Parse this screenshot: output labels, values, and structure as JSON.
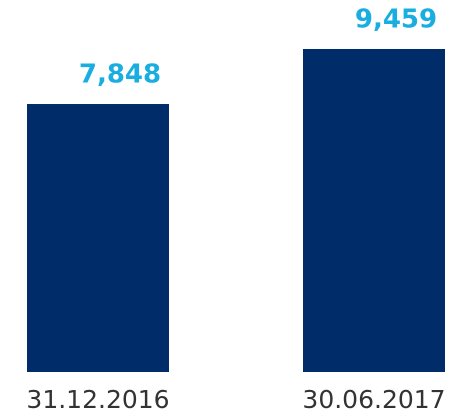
{
  "chart_data": {
    "type": "bar",
    "categories": [
      "31.12.2016",
      "30.06.2017"
    ],
    "values": [
      7848,
      9459
    ],
    "value_labels": [
      "7,848",
      "9,459"
    ],
    "color": "#002d6a",
    "label_color": "#1aaee0"
  }
}
